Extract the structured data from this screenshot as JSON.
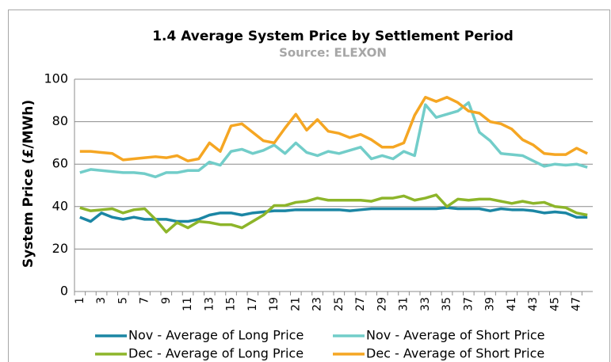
{
  "chart_data": {
    "type": "line",
    "title": "1.4 Average System Price by Settlement Period",
    "subtitle": "Source: ELEXON",
    "y_label": "System Price (£/MWh)",
    "categories": [
      "1",
      null,
      "3",
      null,
      "5",
      null,
      "7",
      null,
      "9",
      null,
      "11",
      null,
      "13",
      null,
      "15",
      null,
      "17",
      null,
      "19",
      null,
      "21",
      null,
      "23",
      null,
      "25",
      null,
      "27",
      null,
      "29",
      null,
      "31",
      null,
      "33",
      null,
      "35",
      null,
      "37",
      null,
      "39",
      null,
      "41",
      null,
      "43",
      null,
      "45",
      null,
      "47",
      null
    ],
    "ylim": [
      0,
      100
    ],
    "yticks": [
      0,
      20,
      40,
      60,
      80,
      100
    ],
    "grid": true,
    "legend": "bottom",
    "series": [
      {
        "name": "Nov - Average of Long Price",
        "color": "#1b86a4",
        "values": [
          35,
          33,
          37,
          35,
          34,
          35,
          34,
          34,
          34,
          33,
          33,
          34,
          36,
          37,
          37,
          36,
          37,
          37.5,
          38,
          38,
          38.5,
          38.5,
          38.5,
          38.5,
          38.5,
          38,
          38.5,
          39,
          39,
          39,
          39,
          39,
          39,
          39,
          39.5,
          39,
          39,
          39,
          38,
          39,
          38.5,
          38.5,
          38,
          37,
          37.5,
          37,
          35,
          35
        ]
      },
      {
        "name": "Nov - Average of Short Price",
        "color": "#72cdc9",
        "values": [
          56,
          57.5,
          57,
          56.5,
          56,
          56,
          55.5,
          54,
          56,
          56,
          57,
          57,
          61,
          59.5,
          66,
          67,
          65,
          66.5,
          69,
          65,
          70,
          65.5,
          64,
          66,
          65,
          66.5,
          68,
          62.5,
          64,
          62.5,
          66,
          64,
          88,
          82,
          83.5,
          85,
          89,
          75,
          71,
          65,
          64.5,
          64,
          61.5,
          59,
          60,
          59.5,
          60,
          58.5
        ]
      },
      {
        "name": "Dec - Average of Long Price",
        "color": "#8db52a",
        "values": [
          39.5,
          38,
          38.5,
          39,
          37,
          38.5,
          39,
          34,
          28,
          32.5,
          30,
          33,
          32.5,
          31.5,
          31.5,
          30,
          33,
          36,
          40.5,
          40.5,
          42,
          42.5,
          44,
          43,
          43,
          43,
          43,
          42.5,
          44,
          44,
          45,
          43,
          44,
          45.5,
          40,
          43.5,
          43,
          43.5,
          43.5,
          42.5,
          41.5,
          42.5,
          41.5,
          42,
          40,
          39.5,
          37,
          36
        ]
      },
      {
        "name": "Dec - Average of Short Price",
        "color": "#f5a623",
        "values": [
          66,
          66,
          65.5,
          65,
          62,
          62.5,
          63,
          63.5,
          63,
          64,
          61.5,
          62.5,
          70,
          66,
          78,
          79,
          75,
          71,
          70,
          77,
          83.5,
          76,
          81,
          75.5,
          74.5,
          72.5,
          74,
          71.5,
          68,
          68,
          70,
          83,
          91.5,
          89.5,
          91.5,
          89,
          85,
          84,
          80,
          79,
          76.5,
          71.5,
          69,
          65,
          64.5,
          64.5,
          67.5,
          65
        ]
      }
    ]
  }
}
